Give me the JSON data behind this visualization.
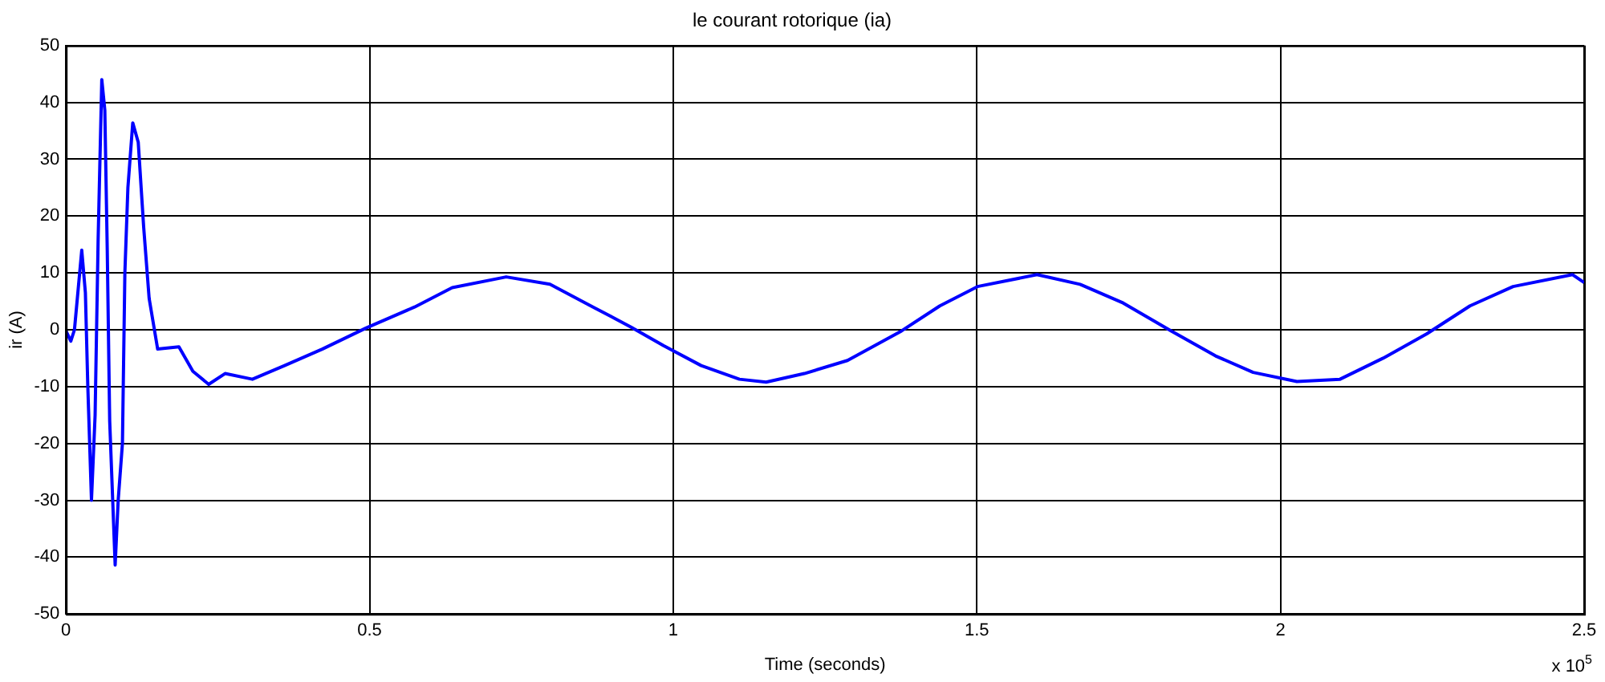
{
  "chart_data": {
    "type": "line",
    "title": "le courant rotorique (ia)",
    "xlabel": "Time (seconds)",
    "ylabel": "ir (A)",
    "annotations": [
      "x 10$^{5}$"
    ],
    "series": [
      {
        "color": "#0000ff",
        "x": [
          0,
          0.008,
          0.014,
          0.026,
          0.032,
          0.036,
          0.042,
          0.048,
          0.053,
          0.059,
          0.064,
          0.068,
          0.072,
          0.081,
          0.086,
          0.093,
          0.097,
          0.102,
          0.11,
          0.119,
          0.128,
          0.137,
          0.151,
          0.186,
          0.209,
          0.235,
          0.262,
          0.307,
          0.36,
          0.422,
          0.494,
          0.574,
          0.636,
          0.725,
          0.797,
          0.868,
          0.93,
          0.984,
          1.046,
          1.109,
          1.153,
          1.216,
          1.287,
          1.376,
          1.439,
          1.501,
          1.599,
          1.67,
          1.741,
          1.82,
          1.893,
          1.955,
          2.027,
          2.098,
          2.169,
          2.241,
          2.312,
          2.383,
          2.481,
          2.5
        ],
        "values": [
          -0.2,
          -2,
          0,
          14,
          6.5,
          -10,
          -30,
          -15,
          16,
          44,
          38.6,
          14,
          -16,
          -41.4,
          -30,
          -20,
          10,
          25,
          36.4,
          33,
          18,
          5.5,
          -3.4,
          -3,
          -7.3,
          -9.6,
          -7.7,
          -8.7,
          -6.3,
          -3.4,
          0.3,
          4,
          7.4,
          9.3,
          8,
          4,
          0.5,
          -2.8,
          -6.3,
          -8.7,
          -9.2,
          -7.7,
          -5.4,
          -0.2,
          4.2,
          7.6,
          9.7,
          8,
          4.7,
          -0.2,
          -4.6,
          -7.5,
          -9.1,
          -8.7,
          -5,
          -0.7,
          4.2,
          7.6,
          9.7,
          8.3
        ]
      }
    ],
    "xlim": [
      0,
      2.5
    ],
    "xticks": [
      0,
      0.5,
      1,
      1.5,
      2,
      2.5
    ],
    "ylim": [
      -50,
      50
    ],
    "yticks": [
      -50,
      -40,
      -30,
      -20,
      -10,
      0,
      10,
      20,
      30,
      40,
      50
    ],
    "grid": true,
    "legend": false,
    "line_style": "solid",
    "marker": "none"
  }
}
